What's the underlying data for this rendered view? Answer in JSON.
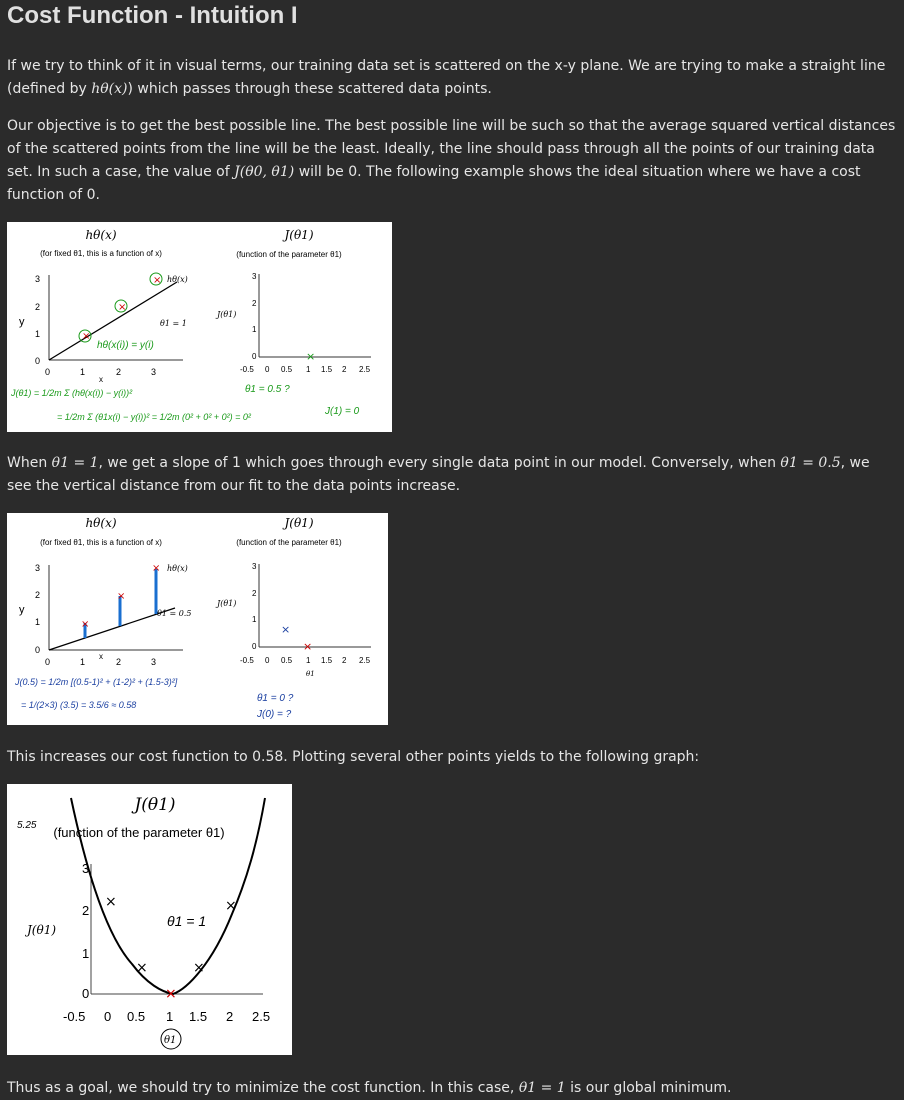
{
  "title": "Cost Function - Intuition I",
  "p1": {
    "before": "If we try to think of it in visual terms, our training data set is scattered on the x-y plane. We are trying to make a straight line (defined by",
    "math": "hθ(x)",
    "after": ") which passes through these scattered data points."
  },
  "p2": {
    "before": "Our objective is to get the best possible line. The best possible line will be such so that the average squared vertical distances of the scattered points from the line will be the least. Ideally, the line should pass through all the points of our training data set. In such a case, the value of",
    "math": "J(θ0, θ1)",
    "after": "will be 0. The following example shows the ideal situation where we have a cost function of 0."
  },
  "p3": {
    "t1": "When",
    "m1": "θ1 = 1",
    "t2": ", we get a slope of 1 which goes through every single data point in our model. Conversely, when",
    "m2": "θ1 = 0.5",
    "t3": ", we see the vertical distance from our fit to the data points increase."
  },
  "p4": "This increases our cost function to 0.58. Plotting several other points yields to the following graph:",
  "p5": {
    "before": "Thus as a goal, we should try to minimize the cost function. In this case,",
    "math": "θ1 = 1",
    "after": "is our global minimum."
  },
  "fig1": {
    "left_title": "hθ(x)",
    "left_sub": "(for fixed θ1, this is a function of x)",
    "right_title": "J(θ1)",
    "right_sub": "(function of the parameter θ1)",
    "line_label": "hθ(x)",
    "theta_label": "θ1 = 1",
    "y_label": "y",
    "j_label": "J(θ1)",
    "x_ticks": [
      "0",
      "1",
      "2",
      "3"
    ],
    "y_ticks": [
      "0",
      "1",
      "2",
      "3"
    ],
    "j_x_ticks": [
      "-0.5",
      "0",
      "0.5",
      "1",
      "1.5",
      "2",
      "2.5"
    ],
    "j_y_ticks": [
      "0",
      "1",
      "2",
      "3"
    ],
    "x_axis": "x",
    "hw_h": "hθ(x(i)) = y(i)",
    "hw_j": "J(θ1) = 1/2m Σ (hθ(x(i)) − y(i))²",
    "hw_j2": "= 1/2m Σ (θ1x(i) − y(i))² = 1/2m (0² + 0² + 0²) = 0²",
    "hw_theta": "θ1 = 0.5 ?",
    "hw_j1": "J(1) = 0"
  },
  "fig2": {
    "left_title": "hθ(x)",
    "left_sub": "(for fixed θ1, this is a function of x)",
    "right_title": "J(θ1)",
    "right_sub": "(function of the parameter θ1)",
    "line_label": "hθ(x)",
    "theta_label": "θ1 = 0.5",
    "y_label": "y",
    "j_label": "J(θ1)",
    "x_ticks": [
      "0",
      "1",
      "2",
      "3"
    ],
    "y_ticks": [
      "0",
      "1",
      "2",
      "3"
    ],
    "j_x_ticks": [
      "-0.5",
      "0",
      "0.5",
      "1",
      "1.5",
      "2",
      "2.5"
    ],
    "j_y_ticks": [
      "0",
      "1",
      "2",
      "3"
    ],
    "j_x_axis": "θ1",
    "x_axis": "x",
    "hw_j": "J(0.5) = 1/2m [(0.5-1)² + (1-2)² + (1.5-3)²]",
    "hw_j2": "= 1/(2×3) (3.5) = 3.5/6 ≈ 0.58",
    "hw_q1": "θ1 = 0 ?",
    "hw_q2": "J(0) = ?"
  },
  "fig3": {
    "title": "J(θ1)",
    "sub": "(function of the parameter θ1)",
    "y_label": "J(θ1)",
    "y_ticks": [
      "0",
      "1",
      "2",
      "3"
    ],
    "x_ticks": [
      "-0.5",
      "0",
      "0.5",
      "1",
      "1.5",
      "2",
      "2.5"
    ],
    "x_axis": "θ1",
    "hw_theta": "θ1 = 1",
    "hw_top": "5.25"
  }
}
